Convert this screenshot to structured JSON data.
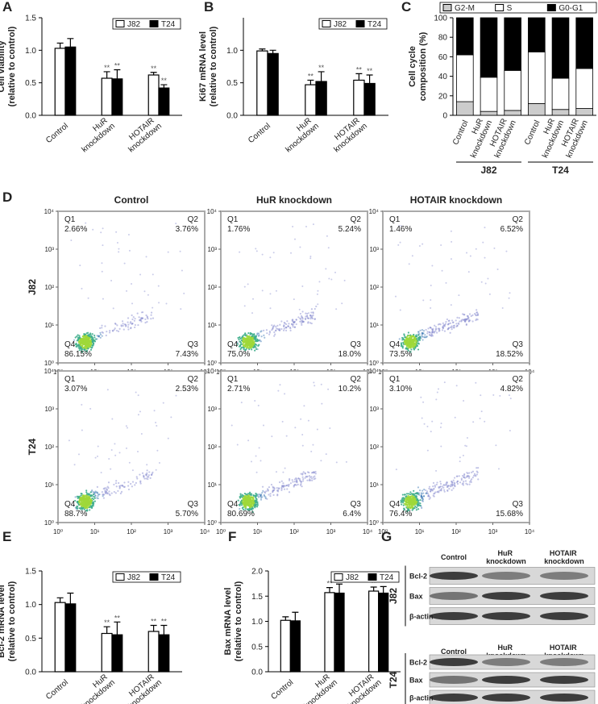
{
  "chart_data": [
    {
      "type": "bar",
      "panel": "A",
      "ylabel": [
        "Cell viability",
        "(relative to control)"
      ],
      "categories": [
        "Control",
        "HuR knockdown",
        "HOTAIR knockdown"
      ],
      "series": [
        {
          "name": "J82",
          "color": "#ffffff",
          "values": [
            1.03,
            0.57,
            0.62
          ],
          "errors": [
            0.08,
            0.1,
            0.04
          ],
          "significance": [
            null,
            "**",
            "**"
          ]
        },
        {
          "name": "T24",
          "color": "#000000",
          "values": [
            1.05,
            0.56,
            0.42
          ],
          "errors": [
            0.13,
            0.14,
            0.05
          ],
          "significance": [
            null,
            "**",
            "**"
          ]
        }
      ],
      "ylim": [
        0,
        1.5
      ],
      "yticks": [
        {
          "value": 0,
          "label": "0.0"
        },
        0.5,
        {
          "value": 1,
          "label": "1.0"
        },
        1.5
      ],
      "legend": "top-right"
    },
    {
      "type": "bar",
      "panel": "B",
      "ylabel": [
        "Ki67 mRNA level",
        "(relative to control)"
      ],
      "categories": [
        "Control",
        "HuR knockdown",
        "HOTAIR knockdown"
      ],
      "series": [
        {
          "name": "J82",
          "color": "#ffffff",
          "values": [
            0.99,
            0.47,
            0.54
          ],
          "errors": [
            0.03,
            0.07,
            0.1
          ],
          "significance": [
            null,
            "**",
            "**"
          ]
        },
        {
          "name": "T24",
          "color": "#000000",
          "values": [
            0.95,
            0.52,
            0.49
          ],
          "errors": [
            0.05,
            0.15,
            0.13
          ],
          "significance": [
            null,
            "**",
            "**"
          ]
        }
      ],
      "ylim": [
        0,
        1.5
      ],
      "yticks": [
        {
          "value": 0,
          "label": "0.0"
        },
        0.5,
        {
          "value": 1,
          "label": "1.0"
        }
      ],
      "legend": "top-right"
    },
    {
      "type": "stacked-bar",
      "panel": "C",
      "ylabel": [
        "Cell cycle",
        "composition (%)"
      ],
      "categories": [
        "Control",
        "HuR knockdown",
        "HOTAIR knockdown",
        "Control",
        "HuR knockdown",
        "HOTAIR knockdown"
      ],
      "groups": [
        "J82",
        "T24"
      ],
      "series": [
        {
          "name": "G2-M",
          "color": "#cccccc",
          "values": [
            14,
            4,
            5,
            12,
            6,
            7
          ]
        },
        {
          "name": "S",
          "color": "#ffffff",
          "values": [
            48,
            35,
            41,
            53,
            32,
            41
          ]
        },
        {
          "name": "G0-G1",
          "color": "#000000",
          "values": [
            38,
            61,
            54,
            35,
            62,
            52
          ]
        }
      ],
      "ylim": [
        0,
        100
      ],
      "yticks": [
        0,
        20,
        40,
        60,
        80,
        100
      ],
      "legend": "top"
    },
    {
      "type": "bar",
      "panel": "E",
      "ylabel": [
        "Bcl-2 mRNA level",
        "(relative to control)"
      ],
      "categories": [
        "Control",
        "HuR knockdown",
        "HOTAIR knockdown"
      ],
      "series": [
        {
          "name": "J82",
          "color": "#ffffff",
          "values": [
            1.03,
            0.57,
            0.6
          ],
          "errors": [
            0.07,
            0.1,
            0.09
          ],
          "significance": [
            null,
            "**",
            "**"
          ]
        },
        {
          "name": "T24",
          "color": "#000000",
          "values": [
            1.01,
            0.55,
            0.55
          ],
          "errors": [
            0.16,
            0.19,
            0.14
          ],
          "significance": [
            null,
            "**",
            "**"
          ]
        }
      ],
      "ylim": [
        0,
        1.5
      ],
      "yticks": [
        {
          "value": 0,
          "label": "0.0"
        },
        0.5,
        {
          "value": 1,
          "label": "1.0"
        },
        1.5
      ],
      "legend": "top-right"
    },
    {
      "type": "bar",
      "panel": "F",
      "ylabel": [
        "Bax mRNA level",
        "(relative to control)"
      ],
      "categories": [
        "Control",
        "HuR knockdown",
        "HOTAIR knockdown"
      ],
      "series": [
        {
          "name": "J82",
          "color": "#ffffff",
          "values": [
            1.02,
            1.57,
            1.6
          ],
          "errors": [
            0.07,
            0.1,
            0.08
          ],
          "significance": [
            null,
            "**",
            "**"
          ]
        },
        {
          "name": "T24",
          "color": "#000000",
          "values": [
            1.01,
            1.56,
            1.56
          ],
          "errors": [
            0.17,
            0.18,
            0.13
          ],
          "significance": [
            null,
            "**",
            "**"
          ]
        }
      ],
      "ylim": [
        0,
        2
      ],
      "yticks": [
        {
          "value": 0,
          "label": "0.0"
        },
        0.5,
        {
          "value": 1,
          "label": "1.0"
        },
        1.5,
        {
          "value": 2,
          "label": "2.0"
        }
      ],
      "legend": "top-right"
    }
  ],
  "flow": {
    "panel": "D",
    "columns": [
      "Control",
      "HuR knockdown",
      "HOTAIR knockdown"
    ],
    "rows": [
      "J82",
      "T24"
    ],
    "quadrants": [
      "Q1",
      "Q2",
      "Q3",
      "Q4"
    ],
    "percentages": [
      [
        [
          "2.66%",
          "3.76%",
          "7.43%",
          "86.15%"
        ],
        [
          "1.76%",
          "5.24%",
          "18.0%",
          "75.0%"
        ],
        [
          "1.46%",
          "6.52%",
          "18.52%",
          "73.5%"
        ]
      ],
      [
        [
          "3.07%",
          "2.53%",
          "5.70%",
          "88.7%"
        ],
        [
          "2.71%",
          "10.2%",
          "6.4%",
          "80.69%"
        ],
        [
          "3.10%",
          "4.82%",
          "15.68%",
          "76.4%"
        ]
      ]
    ],
    "ticks": [
      {
        "value": 1,
        "label": "10⁰"
      },
      {
        "value": 10,
        "label": "10¹"
      },
      {
        "value": 100,
        "label": "10²"
      },
      {
        "value": 1000,
        "label": "10³"
      },
      {
        "value": 10000,
        "label": "10⁴"
      }
    ],
    "log_scale": true
  },
  "blot": {
    "panel": "G",
    "lanes": [
      "Control",
      "HuR knockdown",
      "HOTAIR knockdown"
    ],
    "groups": [
      {
        "name": "J82",
        "rows": [
          "Bcl-2",
          "Bax",
          "β-actin"
        ]
      },
      {
        "name": "T24",
        "rows": [
          "Bcl-2",
          "Bax",
          "β-actin"
        ]
      }
    ]
  }
}
